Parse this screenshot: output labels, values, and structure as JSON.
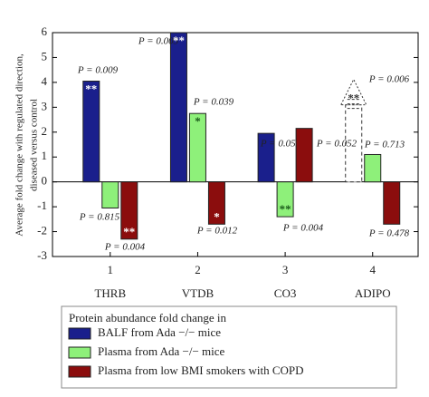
{
  "chart_data": {
    "type": "bar",
    "ylabel": [
      "Average fold change with regulated direction,",
      "diseased versus control"
    ],
    "categories": [
      "THRB",
      "VTDB",
      "CO3",
      "ADIPO"
    ],
    "xticks": [
      1,
      2,
      3,
      4
    ],
    "xlim": [
      0.34,
      4.52
    ],
    "ylim": [
      -3,
      6
    ],
    "yticks": [
      -3,
      -2,
      -1,
      0,
      1,
      2,
      3,
      4,
      5,
      6
    ],
    "legend_title": "Protein abundance fold change in",
    "series": [
      {
        "name": "BALF from Ada −/− mice",
        "color": "#1a1f8c",
        "values": [
          4.05,
          6.0,
          1.95,
          3.1
        ],
        "dashed_points": [
          3
        ],
        "p_labels": [
          "P = 0.009",
          "P = 0.003",
          "P = 0.052",
          "P = 0.006"
        ],
        "stars": [
          "**",
          "**",
          null,
          "**"
        ]
      },
      {
        "name": "Plasma from Ada −/− mice",
        "color": "#8ef07a",
        "values": [
          -1.05,
          2.75,
          -1.4,
          1.1
        ],
        "p_labels": [
          "P = 0.815",
          "P = 0.039",
          "P = 0.004",
          "P = 0.713"
        ],
        "stars": [
          null,
          "*",
          "**",
          null
        ]
      },
      {
        "name": "Plasma from low BMI smokers with COPD",
        "color": "#8b0d0d",
        "values": [
          -2.3,
          -1.7,
          2.15,
          -1.7
        ],
        "p_labels": [
          "P = 0.004",
          "P = 0.012",
          "P = 0.052",
          "P = 0.478"
        ],
        "stars": [
          "**",
          "*",
          null,
          null
        ]
      }
    ]
  }
}
